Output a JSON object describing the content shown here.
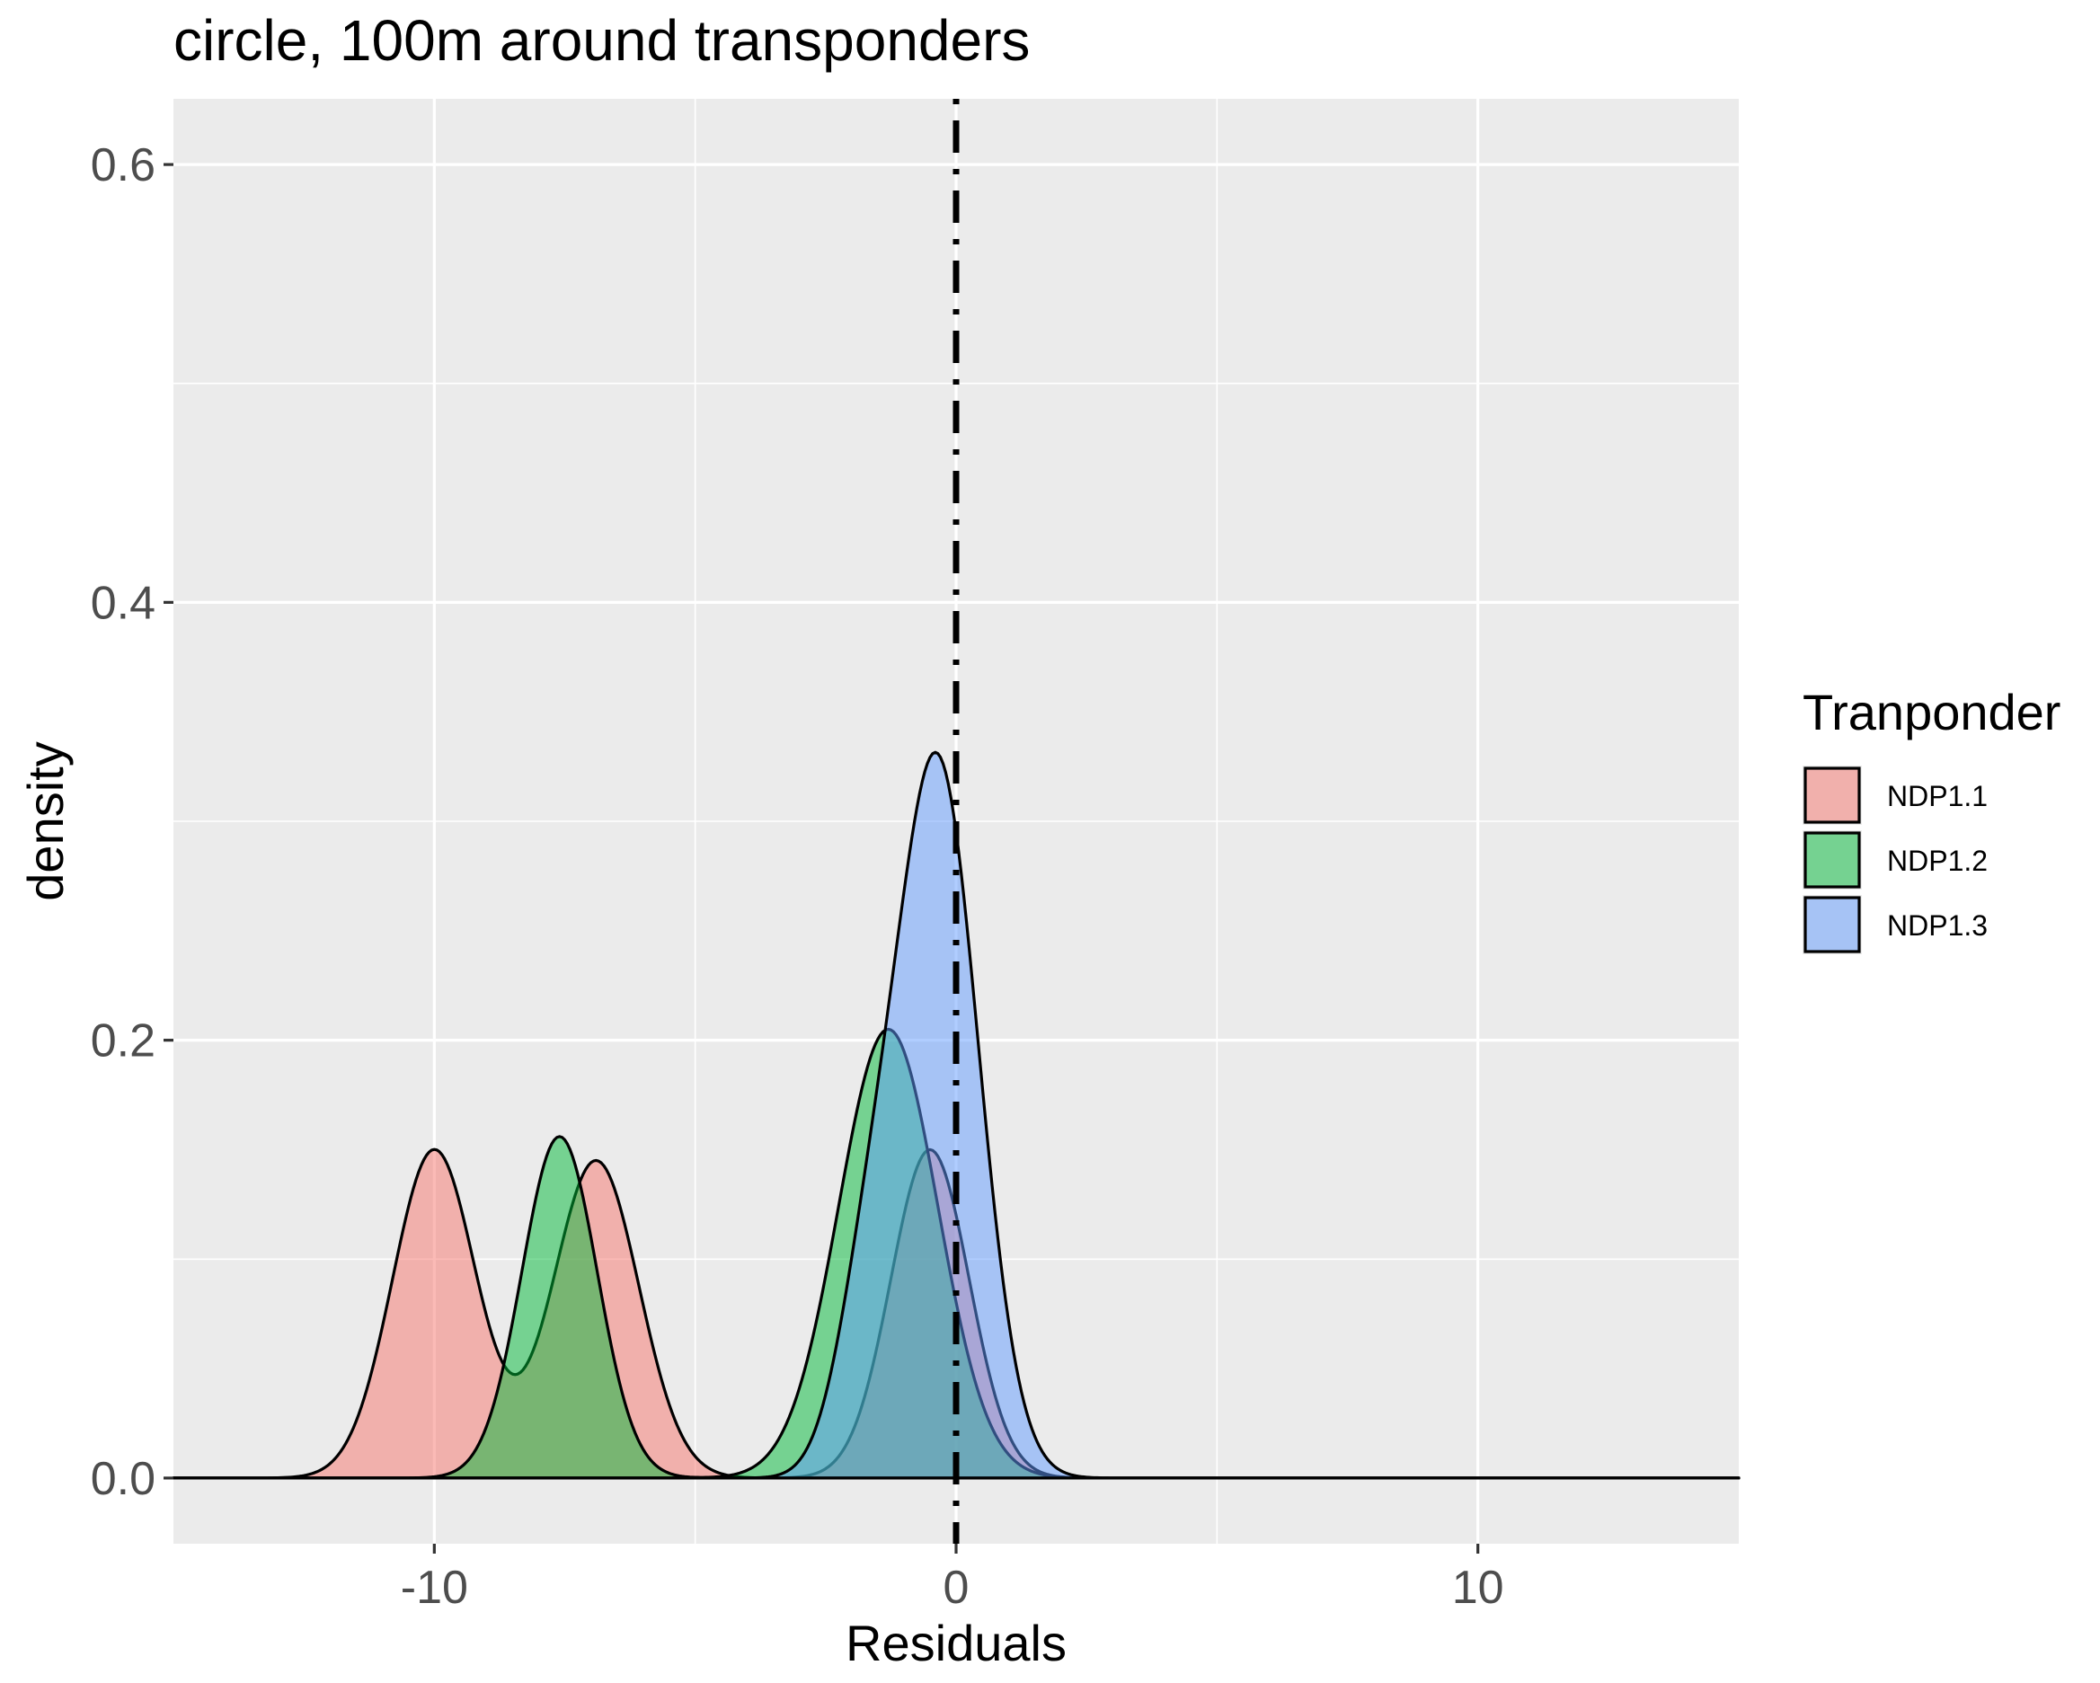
{
  "chart_data": {
    "type": "area",
    "title": "circle, 100m around transponders",
    "xlabel": "Residuals",
    "ylabel": "density",
    "xlim": [
      -15,
      15
    ],
    "ylim": [
      -0.03,
      0.63
    ],
    "x_ticks": [
      -10,
      0,
      10
    ],
    "x_tick_labels": [
      "-10",
      "0",
      "10"
    ],
    "y_ticks": [
      0.0,
      0.2,
      0.4,
      0.6
    ],
    "y_tick_labels": [
      "0.0",
      "0.2",
      "0.4",
      "0.6"
    ],
    "grid": true,
    "panel_background": "#ebebeb",
    "vline": {
      "x": 0,
      "style": "dotdash",
      "color": "#000000"
    },
    "legend": {
      "title": "Tranponder",
      "position": "right"
    },
    "x_range": [
      -15,
      15
    ],
    "series": [
      {
        "name": "NDP1.1",
        "color": "#f8766d",
        "components": [
          {
            "mu": -10.0,
            "sigma": 0.8,
            "peak": 0.15
          },
          {
            "mu": -6.9,
            "sigma": 0.82,
            "peak": 0.145
          },
          {
            "mu": -0.5,
            "sigma": 0.75,
            "peak": 0.15
          }
        ]
      },
      {
        "name": "NDP1.2",
        "color": "#00ba38",
        "components": [
          {
            "mu": -7.6,
            "sigma": 0.72,
            "peak": 0.156
          },
          {
            "mu": -1.3,
            "sigma": 0.95,
            "peak": 0.205
          }
        ]
      },
      {
        "name": "NDP1.3",
        "color": "#619cff",
        "components": [
          {
            "mu": -0.35,
            "sigma": 0.78,
            "peak": 0.325
          },
          {
            "mu": -1.7,
            "sigma": 0.6,
            "peak": 0.075
          }
        ]
      }
    ]
  }
}
